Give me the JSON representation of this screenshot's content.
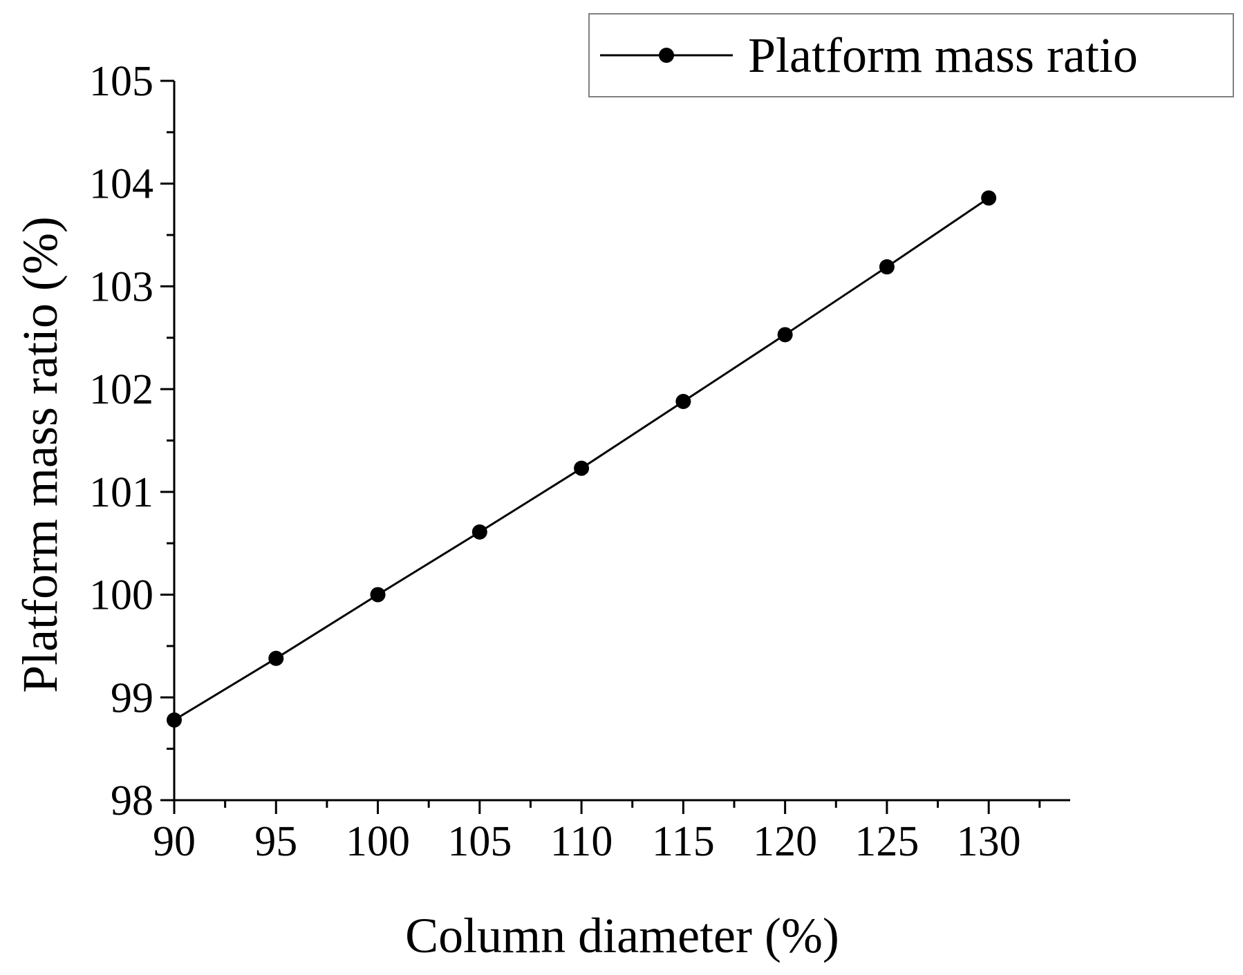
{
  "chart_data": {
    "type": "line",
    "xlabel": "Column diameter (%)",
    "ylabel": "Platform mass ratio (%)",
    "xlim": [
      90,
      134
    ],
    "ylim": [
      98,
      105
    ],
    "x_ticks": [
      "90",
      "95",
      "100",
      "105",
      "110",
      "115",
      "120",
      "125",
      "130"
    ],
    "y_ticks": [
      "98",
      "99",
      "100",
      "101",
      "102",
      "103",
      "104",
      "105"
    ],
    "series": [
      {
        "name": "Platform mass ratio",
        "color": "#000000",
        "marker": "circle",
        "x": [
          90,
          95,
          100,
          105,
          110,
          115,
          120,
          125,
          130
        ],
        "y": [
          98.78,
          99.38,
          100.0,
          100.61,
          101.23,
          101.88,
          102.53,
          103.19,
          103.86
        ]
      }
    ],
    "legend_position": "top-right",
    "grid": false
  }
}
